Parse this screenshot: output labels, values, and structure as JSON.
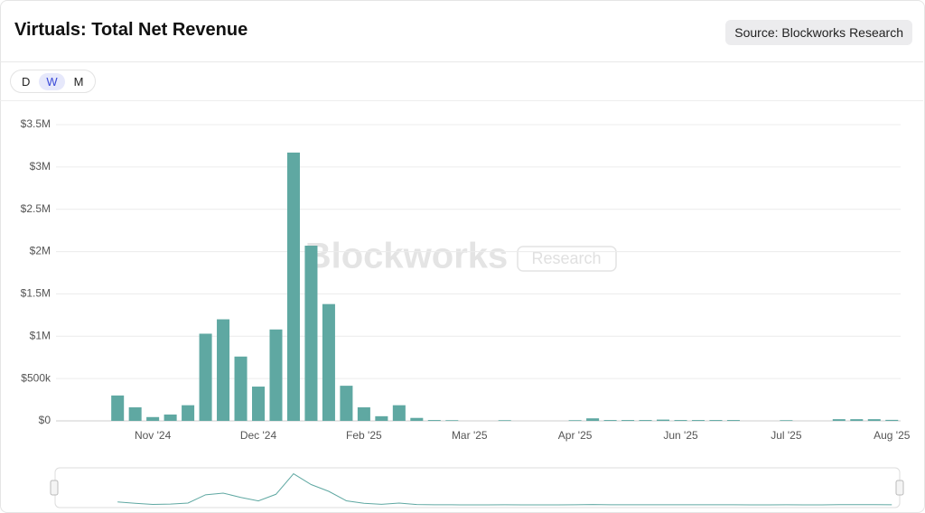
{
  "header": {
    "title": "Virtuals: Total Net Revenue",
    "source": "Source: Blockworks Research"
  },
  "controls": {
    "options": [
      "D",
      "W",
      "M"
    ],
    "selected": "W"
  },
  "watermark": {
    "brand": "Blockworks",
    "tag": "Research"
  },
  "chart_data": {
    "type": "bar",
    "color": "#5fa8a2",
    "categories": [
      null,
      null,
      null,
      null,
      null,
      "Nov '24",
      null,
      null,
      null,
      null,
      null,
      "Dec '24",
      null,
      null,
      null,
      null,
      null,
      "Feb '25",
      null,
      null,
      null,
      null,
      null,
      "Mar '25",
      null,
      null,
      null,
      null,
      null,
      "Apr '25",
      null,
      null,
      null,
      null,
      null,
      "Jun '25",
      null,
      null,
      null,
      null,
      null,
      "Jul '25",
      null,
      null,
      null,
      null,
      null,
      "Aug '25"
    ],
    "values": [
      null,
      null,
      null,
      300000,
      160000,
      45000,
      75000,
      185000,
      1030000,
      1200000,
      760000,
      405000,
      1080000,
      3170000,
      2070000,
      1380000,
      415000,
      160000,
      55000,
      185000,
      35000,
      10000,
      8000,
      0,
      0,
      8000,
      0,
      0,
      0,
      8000,
      30000,
      10000,
      10000,
      10000,
      15000,
      10000,
      10000,
      10000,
      10000,
      0,
      0,
      8000,
      0,
      0,
      20000,
      20000,
      20000,
      12000
    ],
    "ylim": [
      0,
      3500000
    ],
    "yticks": [
      {
        "value": 0,
        "label": "$0"
      },
      {
        "value": 500000,
        "label": "$500k"
      },
      {
        "value": 1000000,
        "label": "$1M"
      },
      {
        "value": 1500000,
        "label": "$1.5M"
      },
      {
        "value": 2000000,
        "label": "$2M"
      },
      {
        "value": 2500000,
        "label": "$2.5M"
      },
      {
        "value": 3000000,
        "label": "$3M"
      },
      {
        "value": 3500000,
        "label": "$3.5M"
      }
    ],
    "grid": true
  }
}
